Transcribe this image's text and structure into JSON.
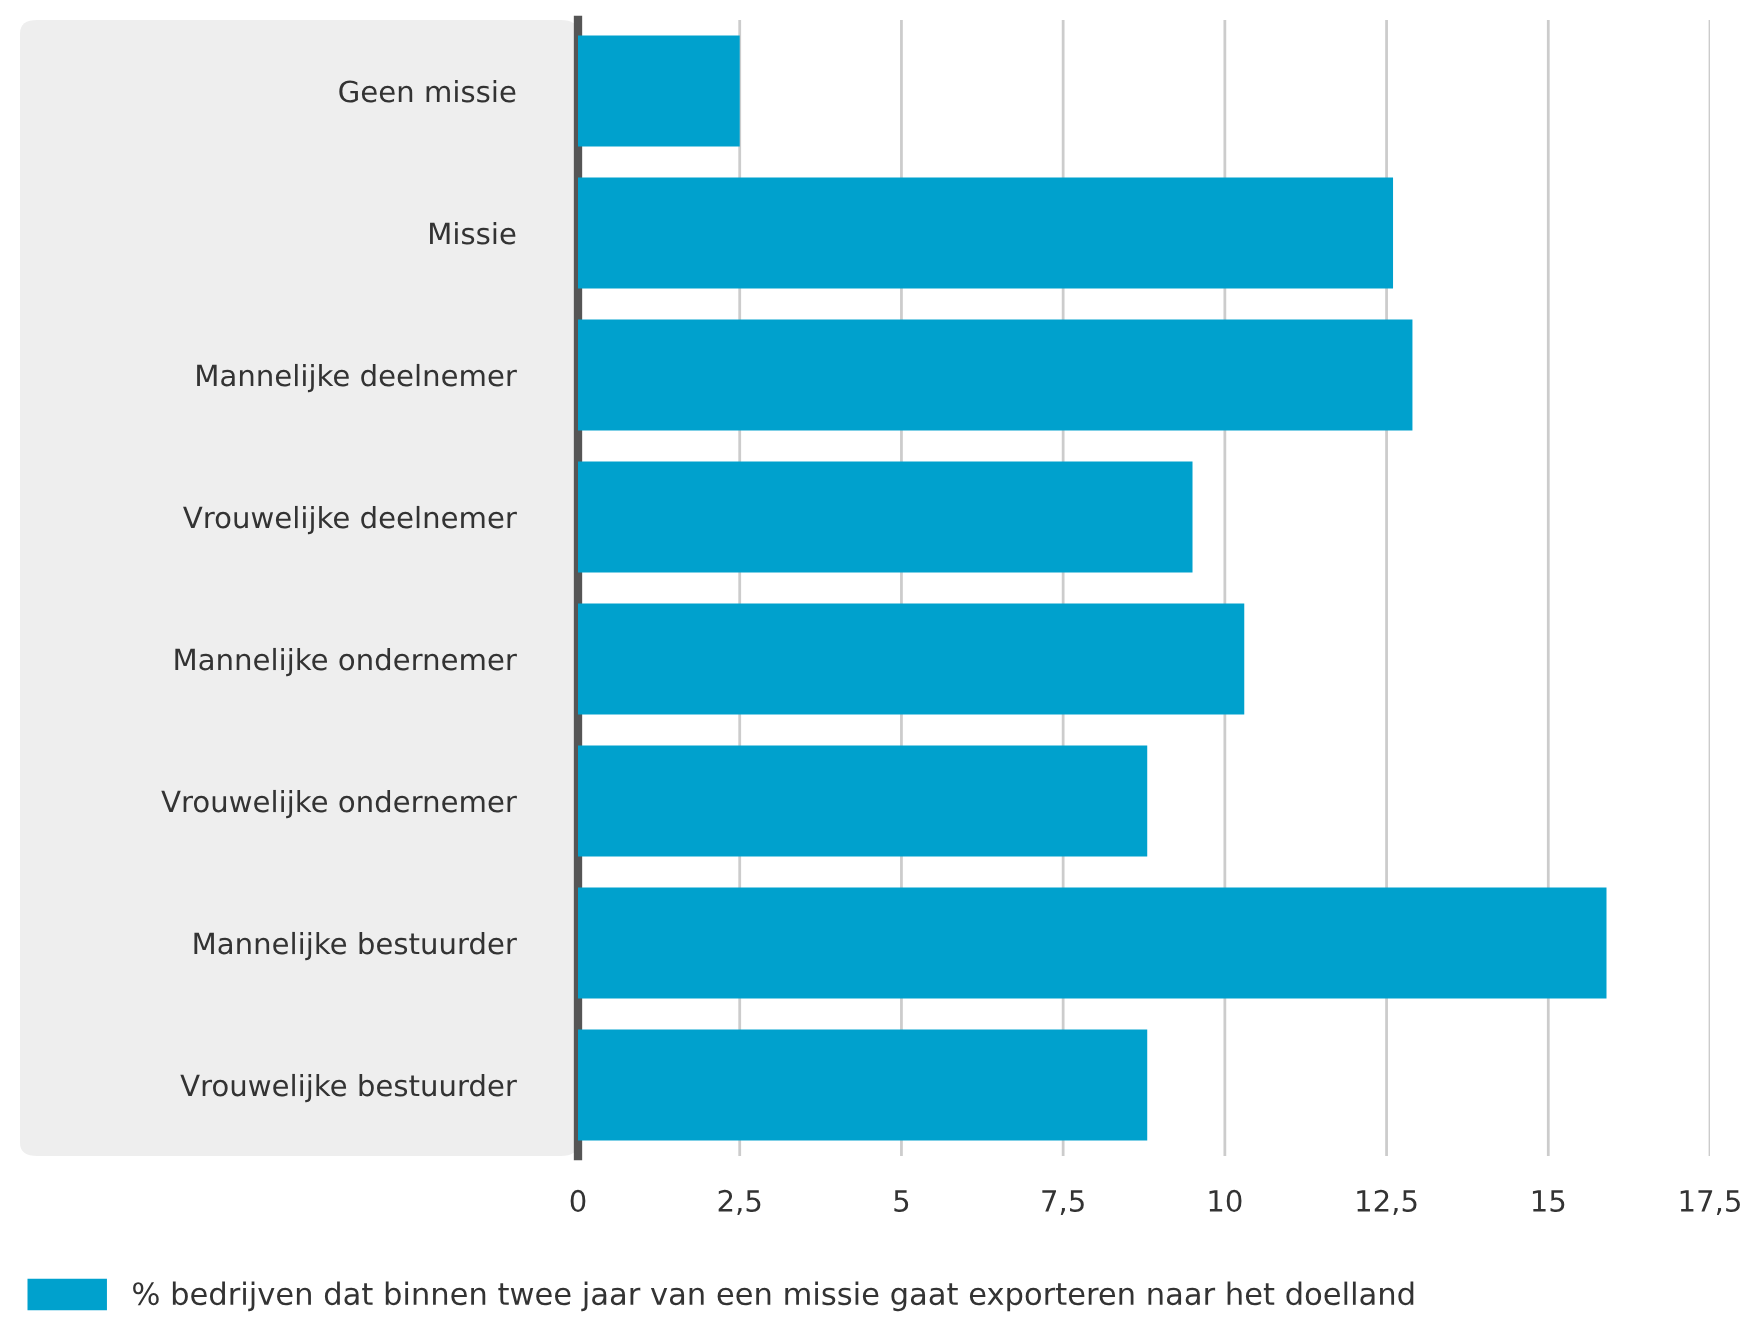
{
  "chart_data": {
    "type": "bar",
    "orientation": "horizontal",
    "categories": [
      "Geen missie",
      "Missie",
      "Mannelijke deelnemer",
      "Vrouwelijke deelnemer",
      "Mannelijke ondernemer",
      "Vrouwelijke ondernemer",
      "Mannelijke bestuurder",
      "Vrouwelijke bestuurder"
    ],
    "series": [
      {
        "name": "% bedrijven dat binnen twee jaar van een missie gaat exporteren naar het doelland",
        "color": "#00a1cd",
        "values": [
          2.5,
          12.6,
          12.9,
          9.5,
          10.3,
          8.8,
          15.9,
          8.8
        ]
      }
    ],
    "xlim": [
      0,
      17.5
    ],
    "xticks": [
      0,
      {
        "value": 2.5,
        "label": "2,5"
      },
      5,
      {
        "value": 7.5,
        "label": "7,5"
      },
      10,
      {
        "value": 12.5,
        "label": "12,5"
      },
      15,
      {
        "value": 17.5,
        "label": "17,5"
      }
    ],
    "grid": "x",
    "legend": "bottom left"
  }
}
